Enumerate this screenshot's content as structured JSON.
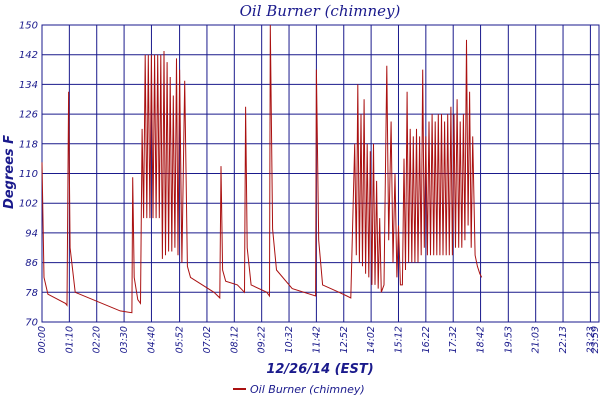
{
  "chart_data": {
    "type": "line",
    "title": "Oil Burner (chimney)",
    "xlabel": "12/26/14 (EST)",
    "ylabel": "Degrees F",
    "ylim": [
      70,
      150
    ],
    "yticks": [
      70,
      78,
      86,
      94,
      102,
      110,
      118,
      126,
      134,
      142,
      150
    ],
    "xlim": [
      0,
      1425
    ],
    "xtick_labels": [
      "00:00",
      "01:10",
      "02:20",
      "03:30",
      "04:40",
      "05:52",
      "07:02",
      "08:12",
      "09:22",
      "10:32",
      "11:42",
      "12:52",
      "14:02",
      "15:12",
      "16:22",
      "17:32",
      "18:42",
      "19:53",
      "21:03",
      "22:13",
      "23:23",
      "23:59"
    ],
    "xtick_minutes": [
      0,
      70,
      140,
      210,
      280,
      352,
      422,
      492,
      562,
      632,
      702,
      772,
      842,
      912,
      982,
      1052,
      1122,
      1193,
      1263,
      1333,
      1403,
      1439
    ],
    "grid": true,
    "legend": "bottom-center",
    "colors": {
      "line": "#aa1111",
      "grid": "#1a1a8c",
      "text": "#1a1a8c"
    },
    "series": [
      {
        "name": "Oil Burner (chimney)",
        "x_unit": "minutes since 00:00",
        "points": [
          [
            0,
            113
          ],
          [
            5,
            82
          ],
          [
            15,
            77.5
          ],
          [
            60,
            75
          ],
          [
            64,
            74.5
          ],
          [
            68,
            132
          ],
          [
            72,
            90
          ],
          [
            85,
            78
          ],
          [
            200,
            73
          ],
          [
            230,
            72.5
          ],
          [
            232,
            109
          ],
          [
            236,
            82
          ],
          [
            245,
            76
          ],
          [
            252,
            75
          ],
          [
            256,
            122
          ],
          [
            260,
            98
          ],
          [
            264,
            142
          ],
          [
            268,
            98
          ],
          [
            272,
            142
          ],
          [
            276,
            98
          ],
          [
            280,
            142
          ],
          [
            284,
            98
          ],
          [
            288,
            142
          ],
          [
            292,
            98
          ],
          [
            296,
            142
          ],
          [
            300,
            98
          ],
          [
            304,
            142
          ],
          [
            308,
            87
          ],
          [
            312,
            143
          ],
          [
            316,
            88
          ],
          [
            320,
            140
          ],
          [
            324,
            89
          ],
          [
            328,
            136
          ],
          [
            332,
            89
          ],
          [
            336,
            131
          ],
          [
            340,
            90
          ],
          [
            344,
            141
          ],
          [
            348,
            88
          ],
          [
            352,
            138
          ],
          [
            358,
            86
          ],
          [
            365,
            135
          ],
          [
            372,
            85
          ],
          [
            380,
            82
          ],
          [
            440,
            78
          ],
          [
            455,
            76.5
          ],
          [
            458,
            112
          ],
          [
            462,
            84
          ],
          [
            470,
            81
          ],
          [
            500,
            80
          ],
          [
            518,
            78
          ],
          [
            521,
            128
          ],
          [
            525,
            90
          ],
          [
            535,
            80
          ],
          [
            575,
            78
          ],
          [
            582,
            77
          ],
          [
            584,
            150
          ],
          [
            590,
            95
          ],
          [
            600,
            84
          ],
          [
            640,
            79
          ],
          [
            700,
            77
          ],
          [
            702,
            138
          ],
          [
            708,
            92
          ],
          [
            718,
            80
          ],
          [
            760,
            78
          ],
          [
            780,
            77
          ],
          [
            790,
            76.5
          ],
          [
            800,
            118
          ],
          [
            804,
            88
          ],
          [
            808,
            134
          ],
          [
            812,
            86
          ],
          [
            816,
            126
          ],
          [
            820,
            85
          ],
          [
            824,
            130
          ],
          [
            828,
            83
          ],
          [
            832,
            118
          ],
          [
            836,
            82
          ],
          [
            840,
            116
          ],
          [
            844,
            80
          ],
          [
            848,
            118
          ],
          [
            852,
            80
          ],
          [
            856,
            108
          ],
          [
            860,
            79
          ],
          [
            864,
            98
          ],
          [
            868,
            78
          ],
          [
            875,
            80
          ],
          [
            882,
            139
          ],
          [
            887,
            92
          ],
          [
            893,
            124
          ],
          [
            898,
            86
          ],
          [
            903,
            110
          ],
          [
            908,
            82
          ],
          [
            912,
            96
          ],
          [
            917,
            80
          ],
          [
            922,
            80
          ],
          [
            926,
            114
          ],
          [
            930,
            84
          ],
          [
            934,
            132
          ],
          [
            938,
            86
          ],
          [
            942,
            122
          ],
          [
            946,
            86
          ],
          [
            950,
            120
          ],
          [
            954,
            86
          ],
          [
            958,
            122
          ],
          [
            962,
            86
          ],
          [
            966,
            120
          ],
          [
            970,
            88
          ],
          [
            974,
            138
          ],
          [
            978,
            90
          ],
          [
            982,
            120
          ],
          [
            986,
            88
          ],
          [
            990,
            124
          ],
          [
            994,
            88
          ],
          [
            998,
            126
          ],
          [
            1002,
            88
          ],
          [
            1006,
            124
          ],
          [
            1010,
            88
          ],
          [
            1014,
            126
          ],
          [
            1018,
            88
          ],
          [
            1022,
            126
          ],
          [
            1026,
            88
          ],
          [
            1030,
            124
          ],
          [
            1034,
            88
          ],
          [
            1038,
            126
          ],
          [
            1042,
            88
          ],
          [
            1046,
            128
          ],
          [
            1050,
            88
          ],
          [
            1054,
            126
          ],
          [
            1058,
            90
          ],
          [
            1062,
            130
          ],
          [
            1066,
            90
          ],
          [
            1070,
            124
          ],
          [
            1074,
            90
          ],
          [
            1078,
            126
          ],
          [
            1082,
            92
          ],
          [
            1086,
            146
          ],
          [
            1090,
            96
          ],
          [
            1094,
            132
          ],
          [
            1098,
            90
          ],
          [
            1102,
            120
          ],
          [
            1108,
            88
          ],
          [
            1114,
            85
          ],
          [
            1120,
            83
          ],
          [
            1125,
            82
          ]
        ]
      }
    ]
  }
}
